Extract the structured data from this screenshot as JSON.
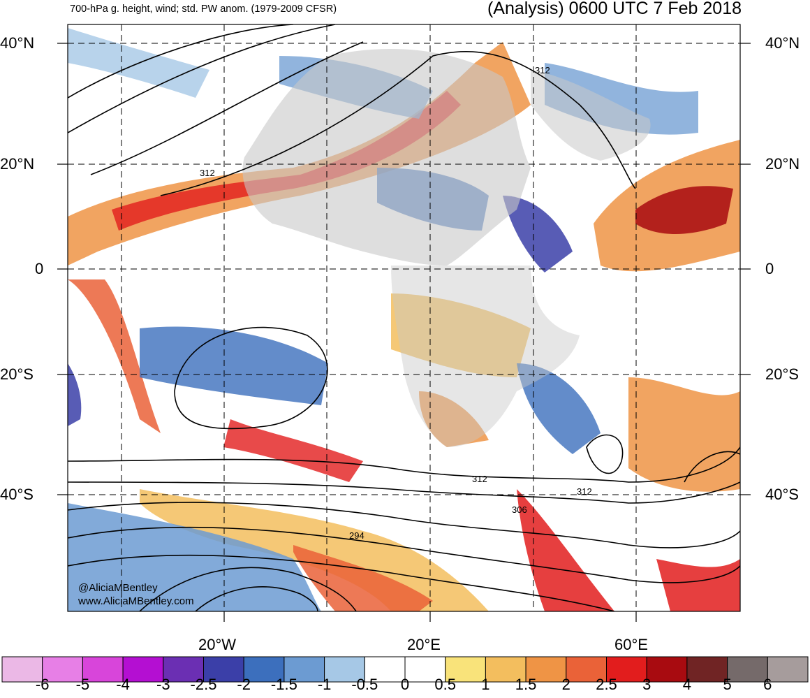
{
  "header": {
    "product_title": "700-hPa g. height, wind; std. PW anom. (1979-2009 CFSR)",
    "valid_time": "(Analysis) 0600 UTC 7 Feb 2018"
  },
  "map": {
    "lat_labels": [
      "40°N",
      "20°N",
      "0",
      "20°S",
      "40°S"
    ],
    "lon_labels": [
      "20°W",
      "20°E",
      "60°E"
    ],
    "contour_labels": [
      "312",
      "312",
      "312",
      "312",
      "306",
      "294"
    ],
    "credits": [
      "@AliciaMBentley",
      "www.AliciaMBentley.com"
    ],
    "land_color": "#c8c8c8",
    "contour_color": "#000000"
  },
  "colorbar": {
    "labels": [
      "-6",
      "-5",
      "-4",
      "-3",
      "-2.5",
      "-2",
      "-1.5",
      "-1",
      "-0.5",
      "0",
      "0.5",
      "1",
      "1.5",
      "2",
      "2.5",
      "3",
      "4",
      "5",
      "6"
    ],
    "colors": [
      "#ebb8e6",
      "#e77fe6",
      "#d845da",
      "#b40fd2",
      "#6b2fb3",
      "#3b3fa8",
      "#3c6fbd",
      "#6c9bd2",
      "#a6c8e6",
      "#ffffff",
      "#ffffff",
      "#f9e37a",
      "#f3be5e",
      "#ef9445",
      "#ea6238",
      "#e21d1d",
      "#a80b10",
      "#702424",
      "#756a6a",
      "#a69c9c"
    ]
  }
}
